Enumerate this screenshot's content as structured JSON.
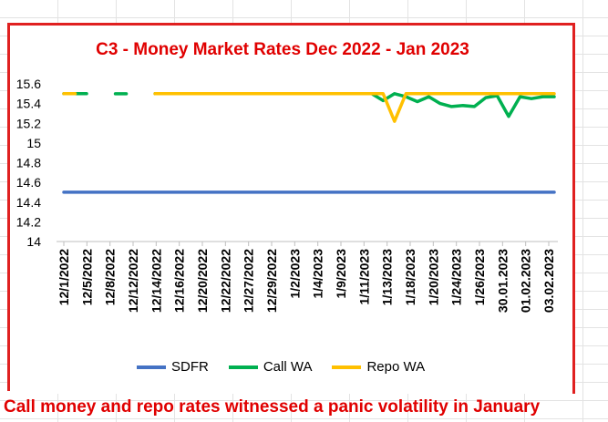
{
  "chart_data": {
    "type": "line",
    "title": "C3 - Money Market Rates Dec 2022 - Jan 2023",
    "caption": "Call money and repo rates witnessed a panic volatility in January",
    "ylim": [
      14,
      15.6
    ],
    "yticks": [
      "15.6",
      "15.4",
      "15.2",
      "15",
      "14.8",
      "14.6",
      "14.4",
      "14.2",
      "14"
    ],
    "xticks": [
      "12/1/2022",
      "12/5/2022",
      "12/8/2022",
      "12/12/2022",
      "12/14/2022",
      "12/16/2022",
      "12/20/2022",
      "12/22/2022",
      "12/27/2022",
      "12/29/2022",
      "1/2/2023",
      "1/4/2023",
      "1/9/2023",
      "1/11/2023",
      "1/13/2023",
      "1/18/2023",
      "1/20/2023",
      "1/24/2023",
      "1/26/2023",
      "30.01.2023",
      "01.02.2023",
      "03.02.2023"
    ],
    "grid": false,
    "legend_position": "bottom",
    "series": [
      {
        "name": "SDFR",
        "color": "#4472C4",
        "values": [
          14.5,
          14.5,
          14.5,
          14.5,
          14.5,
          14.5,
          14.5,
          14.5,
          14.5,
          14.5,
          14.5,
          14.5,
          14.5,
          14.5,
          14.5,
          14.5,
          14.5,
          14.5,
          14.5,
          14.5,
          14.5,
          14.5,
          14.5,
          14.5,
          14.5,
          14.5,
          14.5,
          14.5,
          14.5,
          14.5,
          14.5,
          14.5,
          14.5,
          14.5,
          14.5,
          14.5,
          14.5,
          14.5,
          14.5,
          14.5,
          14.5,
          14.5,
          14.5,
          14.5
        ]
      },
      {
        "name": "Call WA",
        "color": "#00B050",
        "values": [
          15.5,
          15.5,
          15.5,
          null,
          null,
          15.5,
          null,
          null,
          15.5,
          15.5,
          15.5,
          15.5,
          15.5,
          15.5,
          15.5,
          15.5,
          15.5,
          15.5,
          15.5,
          15.5,
          15.5,
          15.5,
          15.5,
          15.5,
          15.5,
          15.5,
          15.5,
          15.5,
          15.43,
          15.5,
          15.47,
          15.42,
          15.47,
          15.4,
          15.37,
          15.38,
          15.37,
          15.46,
          15.48,
          15.27,
          15.47,
          15.45,
          15.47,
          15.47
        ]
      },
      {
        "name": "Repo WA",
        "color": "#FFC000",
        "values": [
          15.5,
          15.5,
          null,
          null,
          null,
          null,
          null,
          null,
          15.5,
          15.5,
          15.5,
          15.5,
          15.5,
          15.5,
          15.5,
          15.5,
          15.5,
          15.5,
          15.5,
          15.5,
          15.5,
          15.5,
          15.5,
          15.5,
          15.5,
          15.5,
          15.5,
          15.5,
          15.5,
          15.22,
          15.5,
          15.5,
          15.5,
          15.5,
          15.5,
          15.5,
          15.5,
          15.5,
          15.5,
          15.5,
          15.5,
          15.5,
          15.5,
          15.5
        ]
      }
    ]
  }
}
